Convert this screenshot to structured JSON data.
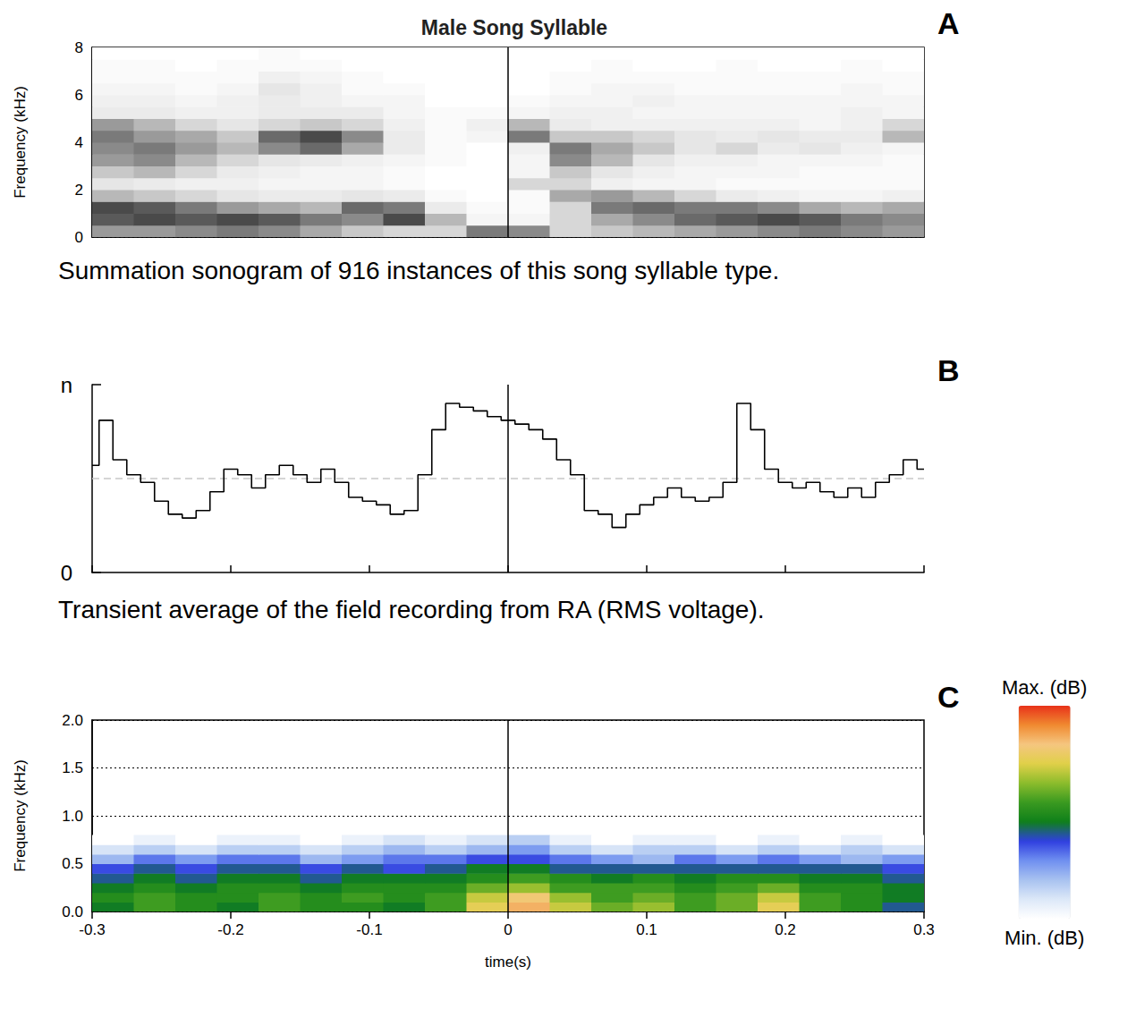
{
  "chart_data": [
    {
      "type": "heatmap",
      "panel": "A",
      "title": "Male Song Syllable",
      "caption": "Summation sonogram of 916 instances of this song syllable type.",
      "y_label": "Frequency (kHz)",
      "xlim": [
        -0.3,
        0.3
      ],
      "ylim": [
        0,
        8
      ],
      "yticks": [
        0,
        2,
        4,
        6,
        8
      ],
      "tick_labels": "y",
      "grid": true,
      "vline": 0,
      "zlim": [
        0,
        1
      ],
      "x_bins": [
        -0.3,
        -0.27,
        -0.24,
        -0.21,
        -0.18,
        -0.15,
        -0.12,
        -0.09,
        -0.06,
        -0.03,
        0,
        0.03,
        0.06,
        0.09,
        0.12,
        0.15,
        0.18,
        0.21,
        0.24,
        0.27,
        0.3
      ],
      "y_bins": [
        0,
        0.5,
        1,
        1.5,
        2,
        2.5,
        3,
        3.5,
        4,
        4.5,
        5,
        5.5,
        6,
        6.5,
        7,
        7.5,
        8
      ],
      "cells": [
        [
          0.5,
          0.5,
          0.55,
          0.6,
          0.55,
          0.45,
          0.35,
          0.3,
          0.3,
          0.6,
          0.55,
          0.3,
          0.35,
          0.4,
          0.45,
          0.5,
          0.55,
          0.6,
          0.55,
          0.5
        ],
        [
          0.7,
          0.75,
          0.7,
          0.75,
          0.7,
          0.6,
          0.55,
          0.75,
          0.4,
          0.1,
          0.1,
          0.3,
          0.45,
          0.55,
          0.65,
          0.7,
          0.75,
          0.7,
          0.6,
          0.55
        ],
        [
          0.75,
          0.7,
          0.6,
          0.5,
          0.45,
          0.4,
          0.65,
          0.6,
          0.2,
          0.05,
          0.05,
          0.3,
          0.6,
          0.65,
          0.6,
          0.6,
          0.55,
          0.45,
          0.4,
          0.45
        ],
        [
          0.4,
          0.35,
          0.3,
          0.25,
          0.2,
          0.2,
          0.25,
          0.2,
          0.05,
          0.0,
          0.05,
          0.45,
          0.5,
          0.4,
          0.3,
          0.2,
          0.15,
          0.1,
          0.1,
          0.15
        ],
        [
          0.25,
          0.2,
          0.15,
          0.15,
          0.1,
          0.1,
          0.1,
          0.05,
          0.0,
          0.0,
          0.3,
          0.3,
          0.15,
          0.1,
          0.1,
          0.05,
          0.05,
          0.05,
          0.05,
          0.05
        ],
        [
          0.35,
          0.4,
          0.3,
          0.2,
          0.15,
          0.1,
          0.1,
          0.05,
          0.0,
          0.0,
          0.1,
          0.35,
          0.25,
          0.15,
          0.1,
          0.1,
          0.1,
          0.05,
          0.05,
          0.05
        ],
        [
          0.5,
          0.55,
          0.4,
          0.3,
          0.25,
          0.2,
          0.15,
          0.1,
          0.05,
          0.0,
          0.1,
          0.55,
          0.4,
          0.25,
          0.15,
          0.15,
          0.1,
          0.1,
          0.1,
          0.05
        ],
        [
          0.55,
          0.6,
          0.5,
          0.4,
          0.55,
          0.65,
          0.45,
          0.2,
          0.05,
          0.0,
          0.15,
          0.6,
          0.45,
          0.35,
          0.25,
          0.3,
          0.2,
          0.25,
          0.15,
          0.1
        ],
        [
          0.6,
          0.5,
          0.45,
          0.35,
          0.65,
          0.75,
          0.55,
          0.2,
          0.05,
          0.1,
          0.6,
          0.35,
          0.35,
          0.3,
          0.25,
          0.2,
          0.25,
          0.2,
          0.2,
          0.4
        ],
        [
          0.5,
          0.4,
          0.3,
          0.25,
          0.3,
          0.35,
          0.3,
          0.15,
          0.05,
          0.15,
          0.4,
          0.2,
          0.15,
          0.15,
          0.15,
          0.15,
          0.15,
          0.1,
          0.15,
          0.3
        ],
        [
          0.2,
          0.2,
          0.15,
          0.15,
          0.2,
          0.2,
          0.2,
          0.1,
          0.05,
          0.05,
          0.1,
          0.15,
          0.15,
          0.1,
          0.1,
          0.1,
          0.1,
          0.1,
          0.15,
          0.1
        ],
        [
          0.15,
          0.15,
          0.1,
          0.15,
          0.2,
          0.15,
          0.1,
          0.1,
          0.0,
          0.0,
          0.05,
          0.1,
          0.1,
          0.15,
          0.1,
          0.1,
          0.1,
          0.1,
          0.1,
          0.1
        ],
        [
          0.1,
          0.1,
          0.05,
          0.1,
          0.25,
          0.15,
          0.05,
          0.05,
          0.0,
          0.0,
          0.0,
          0.05,
          0.1,
          0.1,
          0.05,
          0.05,
          0.05,
          0.05,
          0.1,
          0.05
        ],
        [
          0.05,
          0.05,
          0.05,
          0.05,
          0.15,
          0.1,
          0.05,
          0.0,
          0.0,
          0.0,
          0.0,
          0.05,
          0.05,
          0.05,
          0.05,
          0.05,
          0.05,
          0.05,
          0.05,
          0.05
        ],
        [
          0.05,
          0.05,
          0.0,
          0.05,
          0.05,
          0.05,
          0.0,
          0.0,
          0.0,
          0.0,
          0.0,
          0.0,
          0.05,
          0.0,
          0.0,
          0.05,
          0.0,
          0.0,
          0.05,
          0.0
        ],
        [
          0.0,
          0.0,
          0.0,
          0.0,
          0.05,
          0.0,
          0.0,
          0.0,
          0.0,
          0.0,
          0.0,
          0.0,
          0.0,
          0.0,
          0.0,
          0.0,
          0.0,
          0.0,
          0.0,
          0.0
        ]
      ]
    },
    {
      "type": "line",
      "panel": "B",
      "caption": "Transient average of the field recording from RA (RMS voltage).",
      "color": "#000000",
      "x": [
        -0.3,
        -0.29,
        -0.28,
        -0.27,
        -0.26,
        -0.25,
        -0.24,
        -0.23,
        -0.22,
        -0.21,
        -0.2,
        -0.19,
        -0.18,
        -0.17,
        -0.16,
        -0.15,
        -0.14,
        -0.13,
        -0.12,
        -0.11,
        -0.1,
        -0.09,
        -0.08,
        -0.07,
        -0.06,
        -0.05,
        -0.04,
        -0.03,
        -0.02,
        -0.01,
        0,
        0.01,
        0.02,
        0.03,
        0.04,
        0.05,
        0.06,
        0.07,
        0.08,
        0.09,
        0.1,
        0.11,
        0.12,
        0.13,
        0.14,
        0.15,
        0.16,
        0.17,
        0.18,
        0.19,
        0.2,
        0.21,
        0.22,
        0.23,
        0.24,
        0.25,
        0.26,
        0.27,
        0.28,
        0.29,
        0.3
      ],
      "values": [
        0.57,
        0.81,
        0.6,
        0.52,
        0.48,
        0.38,
        0.31,
        0.29,
        0.33,
        0.43,
        0.55,
        0.52,
        0.45,
        0.52,
        0.57,
        0.52,
        0.48,
        0.55,
        0.48,
        0.4,
        0.38,
        0.36,
        0.31,
        0.33,
        0.52,
        0.76,
        0.9,
        0.88,
        0.86,
        0.83,
        0.81,
        0.79,
        0.76,
        0.71,
        0.6,
        0.52,
        0.33,
        0.31,
        0.24,
        0.31,
        0.36,
        0.4,
        0.45,
        0.4,
        0.38,
        0.4,
        0.48,
        0.9,
        0.76,
        0.55,
        0.48,
        0.45,
        0.48,
        0.43,
        0.4,
        0.45,
        0.4,
        0.48,
        0.52,
        0.6,
        0.55
      ],
      "xlim": [
        -0.3,
        0.3
      ],
      "xticks": [
        -0.3,
        -0.2,
        -0.1,
        0,
        0.1,
        0.2,
        0.3
      ],
      "ylim": [
        0,
        1
      ],
      "yticks": [
        0,
        {
          "value": 1,
          "label": "n"
        }
      ],
      "tick_labels": "y",
      "baseline": 0.5,
      "vline": 0
    },
    {
      "type": "heatmap",
      "panel": "C",
      "y_label": "Frequency (kHz)",
      "x_label": "time(s)",
      "xlim": [
        -0.3,
        0.3
      ],
      "xticks": [
        -0.3,
        -0.2,
        -0.1,
        0,
        0.1,
        0.2,
        0.3
      ],
      "ylim": [
        0,
        2
      ],
      "yticks": [
        {
          "value": 0,
          "label": "0.0"
        },
        {
          "value": 0.5,
          "label": "0.5"
        },
        {
          "value": 1,
          "label": "1.0"
        },
        {
          "value": 1.5,
          "label": "1.5"
        },
        {
          "value": 2,
          "label": "2.0"
        }
      ],
      "grid": true,
      "vline": 0,
      "x_bins": [
        -0.3,
        -0.27,
        -0.24,
        -0.21,
        -0.18,
        -0.15,
        -0.12,
        -0.09,
        -0.06,
        -0.03,
        0,
        0.03,
        0.06,
        0.09,
        0.12,
        0.15,
        0.18,
        0.21,
        0.24,
        0.27,
        0.3
      ],
      "y_bins": [
        0,
        0.1,
        0.2,
        0.3,
        0.4,
        0.5,
        0.6,
        0.7,
        0.8
      ],
      "cells": [
        [
          0.45,
          0.55,
          0.5,
          0.45,
          0.55,
          0.5,
          0.5,
          0.45,
          0.55,
          0.75,
          0.85,
          0.7,
          0.6,
          0.65,
          0.55,
          0.6,
          0.75,
          0.55,
          0.5,
          0.4
        ],
        [
          0.5,
          0.55,
          0.5,
          0.5,
          0.55,
          0.5,
          0.55,
          0.5,
          0.55,
          0.7,
          0.8,
          0.65,
          0.55,
          0.6,
          0.55,
          0.6,
          0.7,
          0.55,
          0.5,
          0.45
        ],
        [
          0.45,
          0.5,
          0.45,
          0.5,
          0.5,
          0.45,
          0.5,
          0.5,
          0.5,
          0.6,
          0.65,
          0.55,
          0.55,
          0.55,
          0.5,
          0.55,
          0.6,
          0.5,
          0.5,
          0.45
        ],
        [
          0.4,
          0.45,
          0.4,
          0.45,
          0.45,
          0.4,
          0.45,
          0.45,
          0.45,
          0.5,
          0.55,
          0.5,
          0.45,
          0.5,
          0.45,
          0.5,
          0.5,
          0.45,
          0.45,
          0.4
        ],
        [
          0.35,
          0.4,
          0.35,
          0.4,
          0.4,
          0.35,
          0.4,
          0.35,
          0.4,
          0.45,
          0.45,
          0.4,
          0.4,
          0.4,
          0.4,
          0.4,
          0.4,
          0.4,
          0.4,
          0.35
        ],
        [
          0.2,
          0.3,
          0.25,
          0.3,
          0.3,
          0.2,
          0.25,
          0.3,
          0.3,
          0.35,
          0.35,
          0.3,
          0.25,
          0.2,
          0.3,
          0.25,
          0.3,
          0.25,
          0.2,
          0.25
        ],
        [
          0.1,
          0.15,
          0.1,
          0.15,
          0.15,
          0.1,
          0.15,
          0.2,
          0.15,
          0.2,
          0.25,
          0.15,
          0.1,
          0.15,
          0.15,
          0.1,
          0.15,
          0.1,
          0.15,
          0.1
        ],
        [
          0.0,
          0.05,
          0.0,
          0.05,
          0.05,
          0.0,
          0.05,
          0.1,
          0.05,
          0.1,
          0.15,
          0.05,
          0.0,
          0.05,
          0.05,
          0.0,
          0.05,
          0.0,
          0.05,
          0.0
        ]
      ],
      "colorbar": {
        "range": [
          0,
          1
        ],
        "ticks": [
          {
            "value": 1,
            "label": "Max. (dB)"
          },
          {
            "value": 0,
            "label": "Min. (dB)"
          }
        ]
      }
    }
  ]
}
